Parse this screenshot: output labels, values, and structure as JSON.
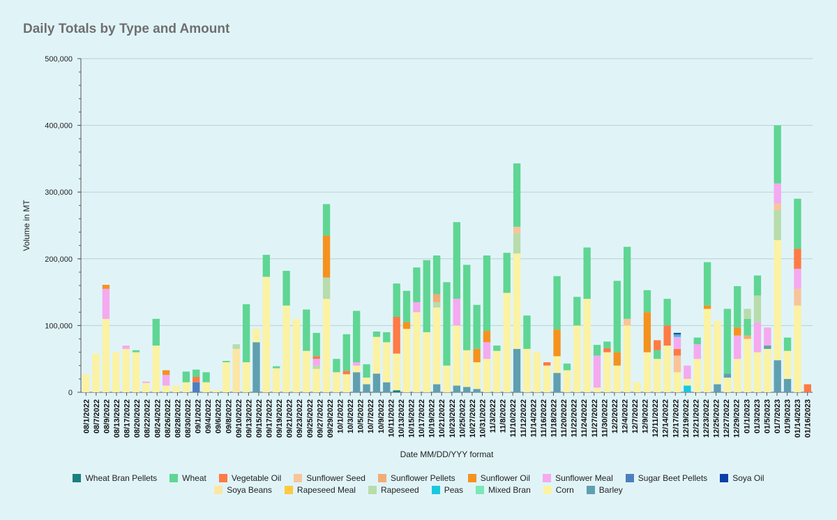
{
  "chart_data": {
    "type": "stacked-bar",
    "title": "Daily Totals by Type and Amount",
    "xlabel": "Date MM/DD/YYY format",
    "ylabel": "Volume in MT",
    "ylim": [
      0,
      500000
    ],
    "yticks": [
      "0",
      "100,000",
      "200,000",
      "300,000",
      "400,000",
      "500,000"
    ],
    "series": [
      {
        "name": "Wheat Bran Pellets",
        "color": "#1a7f7f"
      },
      {
        "name": "Wheat",
        "color": "#5fd693"
      },
      {
        "name": "Vegetable Oil",
        "color": "#ff7a45"
      },
      {
        "name": "Sunflower Seed",
        "color": "#f9c49a"
      },
      {
        "name": "Sunflower Pellets",
        "color": "#f2ad74"
      },
      {
        "name": "Sunflower Oil",
        "color": "#f5921f"
      },
      {
        "name": "Sunflower Meal",
        "color": "#f5a9ef"
      },
      {
        "name": "Sugar Beet Pellets",
        "color": "#4d7fbf"
      },
      {
        "name": "Soya Oil",
        "color": "#0c3fa8"
      },
      {
        "name": "Soya Beans",
        "color": "#fce6a4"
      },
      {
        "name": "Rapeseed Meal",
        "color": "#ffc940"
      },
      {
        "name": "Rapeseed",
        "color": "#b8dcab"
      },
      {
        "name": "Peas",
        "color": "#19c8df"
      },
      {
        "name": "Mixed Bran",
        "color": "#7ae8b8"
      },
      {
        "name": "Corn",
        "color": "#fbf2a3"
      },
      {
        "name": "Barley",
        "color": "#5f9fb0"
      }
    ],
    "x_tick_labels": [
      "08/1/2022",
      "08/7/2022",
      "08/9/2022",
      "08/13/2022",
      "08/17/2022",
      "08/20/2022",
      "08/22/2022",
      "08/24/2022",
      "08/26/2022",
      "08/28/2022",
      "08/30/2022",
      "09/1/2022",
      "09/4/2022",
      "09/6/2022",
      "09/8/2022",
      "09/10/2022",
      "09/13/2022",
      "09/15/2022",
      "09/17/2022",
      "09/19/2022",
      "09/21/2022",
      "09/23/2022",
      "09/25/2022",
      "09/27/2022",
      "09/29/2022",
      "10/1/2022",
      "10/3/2022",
      "10/5/2022",
      "10/7/2022",
      "10/9/2022",
      "10/11/2022",
      "10/13/2022",
      "10/15/2022",
      "10/17/2022",
      "10/19/2022",
      "10/21/2022",
      "10/23/2022",
      "10/25/2022",
      "10/27/2022",
      "10/31/2022",
      "11/3/2022",
      "11/8/2022",
      "11/10/2022",
      "11/12/2022",
      "11/14/2022",
      "11/16/2022",
      "11/18/2022",
      "11/20/2022",
      "11/22/2022",
      "11/24/2022",
      "11/27/2022",
      "11/30/2022",
      "12/2/2022",
      "12/4/2022",
      "12/7/2022",
      "12/9/2022",
      "12/11/2022",
      "12/14/2022",
      "12/17/2022",
      "12/19/2022",
      "12/21/2022",
      "12/23/2022",
      "12/25/2022",
      "12/27/2022",
      "12/29/2022",
      "01/1/2023",
      "01/3/2023",
      "01/5/2023",
      "01/7/2023",
      "01/9/2023",
      "01/14/2023",
      "01/16/2023"
    ],
    "bars": [
      [
        [
          "Corn",
          27000
        ]
      ],
      [
        [
          "Corn",
          58000
        ]
      ],
      [
        [
          "Corn",
          110000
        ],
        [
          "Sunflower Meal",
          45000
        ],
        [
          "Sunflower Oil",
          6000
        ]
      ],
      [
        [
          "Corn",
          60000
        ]
      ],
      [
        [
          "Corn",
          65000
        ],
        [
          "Sunflower Meal",
          5000
        ]
      ],
      [
        [
          "Corn",
          60000
        ],
        [
          "Wheat",
          3000
        ]
      ],
      [
        [
          "Corn",
          14000
        ],
        [
          "Sunflower Meal",
          2000
        ]
      ],
      [
        [
          "Corn",
          70000
        ],
        [
          "Wheat",
          40000
        ]
      ],
      [
        [
          "Corn",
          10000
        ],
        [
          "Sunflower Meal",
          16000
        ],
        [
          "Sunflower Oil",
          7000
        ]
      ],
      [
        [
          "Corn",
          10000
        ]
      ],
      [
        [
          "Corn",
          15000
        ],
        [
          "Wheat",
          16000
        ]
      ],
      [
        [
          "Sugar Beet Pellets",
          15000
        ],
        [
          "Vegetable Oil",
          8000
        ],
        [
          "Wheat",
          11000
        ]
      ],
      [
        [
          "Corn",
          15000
        ],
        [
          "Wheat",
          15000
        ]
      ],
      [
        [
          "Corn",
          3000
        ]
      ],
      [
        [
          "Corn",
          45000
        ],
        [
          "Wheat",
          2000
        ]
      ],
      [
        [
          "Soya Beans",
          65000
        ],
        [
          "Rapeseed",
          7000
        ]
      ],
      [
        [
          "Corn",
          45000
        ],
        [
          "Wheat",
          87000
        ]
      ],
      [
        [
          "Barley",
          75000
        ],
        [
          "Corn",
          20000
        ]
      ],
      [
        [
          "Corn",
          173000
        ],
        [
          "Wheat",
          33000
        ]
      ],
      [
        [
          "Corn",
          36000
        ],
        [
          "Wheat",
          3000
        ]
      ],
      [
        [
          "Corn",
          130000
        ],
        [
          "Wheat",
          52000
        ]
      ],
      [
        [
          "Corn",
          110000
        ]
      ],
      [
        [
          "Corn",
          62000
        ],
        [
          "Wheat",
          62000
        ]
      ],
      [
        [
          "Corn",
          35000
        ],
        [
          "Rapeseed",
          5000
        ],
        [
          "Sunflower Meal",
          10000
        ],
        [
          "Vegetable Oil",
          4000
        ],
        [
          "Wheat",
          35000
        ]
      ],
      [
        [
          "Corn",
          140000
        ],
        [
          "Rapeseed",
          32000
        ],
        [
          "Sunflower Oil",
          63000
        ],
        [
          "Wheat",
          47000
        ]
      ],
      [
        [
          "Corn",
          30000
        ],
        [
          "Wheat",
          20000
        ]
      ],
      [
        [
          "Corn",
          27000
        ],
        [
          "Vegetable Oil",
          5000
        ],
        [
          "Wheat",
          55000
        ]
      ],
      [
        [
          "Barley",
          30000
        ],
        [
          "Corn",
          10000
        ],
        [
          "Sunflower Meal",
          5000
        ],
        [
          "Wheat",
          77000
        ]
      ],
      [
        [
          "Barley",
          12000
        ],
        [
          "Corn",
          10000
        ],
        [
          "Wheat",
          20000
        ]
      ],
      [
        [
          "Barley",
          28000
        ],
        [
          "Corn",
          55000
        ],
        [
          "Wheat",
          8000
        ]
      ],
      [
        [
          "Barley",
          15000
        ],
        [
          "Corn",
          60000
        ],
        [
          "Wheat",
          15000
        ]
      ],
      [
        [
          "Wheat Bran Pellets",
          3000
        ],
        [
          "Corn",
          55000
        ],
        [
          "Vegetable Oil",
          55000
        ],
        [
          "Wheat",
          50000
        ]
      ],
      [
        [
          "Corn",
          95000
        ],
        [
          "Sunflower Oil",
          10000
        ],
        [
          "Wheat",
          47000
        ]
      ],
      [
        [
          "Corn",
          120000
        ],
        [
          "Sunflower Meal",
          15000
        ],
        [
          "Wheat",
          52000
        ]
      ],
      [
        [
          "Corn",
          90000
        ],
        [
          "Wheat",
          108000
        ]
      ],
      [
        [
          "Barley",
          12000
        ],
        [
          "Corn",
          115000
        ],
        [
          "Rapeseed",
          8000
        ],
        [
          "Sunflower Pellets",
          12000
        ],
        [
          "Wheat",
          58000
        ]
      ],
      [
        [
          "Corn",
          40000
        ],
        [
          "Wheat",
          125000
        ]
      ],
      [
        [
          "Barley",
          10000
        ],
        [
          "Corn",
          90000
        ],
        [
          "Sunflower Meal",
          40000
        ],
        [
          "Wheat",
          115000
        ]
      ],
      [
        [
          "Barley",
          8000
        ],
        [
          "Corn",
          55000
        ],
        [
          "Wheat",
          128000
        ]
      ],
      [
        [
          "Barley",
          5000
        ],
        [
          "Corn",
          40000
        ],
        [
          "Sunflower Oil",
          20000
        ],
        [
          "Wheat",
          66000
        ]
      ],
      [
        [
          "Corn",
          50000
        ],
        [
          "Sunflower Meal",
          25000
        ],
        [
          "Sunflower Oil",
          17000
        ],
        [
          "Wheat",
          113000
        ]
      ],
      [
        [
          "Corn",
          62000
        ],
        [
          "Wheat",
          8000
        ]
      ],
      [
        [
          "Corn",
          149000
        ],
        [
          "Wheat",
          60000
        ]
      ],
      [
        [
          "Barley",
          65000
        ],
        [
          "Corn",
          143000
        ],
        [
          "Rapeseed",
          30000
        ],
        [
          "Sunflower Seed",
          10000
        ],
        [
          "Wheat",
          95000
        ]
      ],
      [
        [
          "Corn",
          65000
        ],
        [
          "Wheat",
          50000
        ]
      ],
      [
        [
          "Corn",
          60000
        ]
      ],
      [
        [
          "Corn",
          40000
        ],
        [
          "Vegetable Oil",
          5000
        ]
      ],
      [
        [
          "Barley",
          29000
        ],
        [
          "Corn",
          25000
        ],
        [
          "Sunflower Oil",
          40000
        ],
        [
          "Wheat",
          80000
        ]
      ],
      [
        [
          "Corn",
          33000
        ],
        [
          "Wheat",
          10000
        ]
      ],
      [
        [
          "Corn",
          100000
        ],
        [
          "Wheat",
          43000
        ]
      ],
      [
        [
          "Corn",
          140000
        ],
        [
          "Wheat",
          77000
        ]
      ],
      [
        [
          "Corn",
          7000
        ],
        [
          "Sunflower Meal",
          48000
        ],
        [
          "Wheat",
          16000
        ]
      ],
      [
        [
          "Corn",
          60000
        ],
        [
          "Vegetable Oil",
          6000
        ],
        [
          "Wheat",
          10000
        ]
      ],
      [
        [
          "Corn",
          40000
        ],
        [
          "Sunflower Oil",
          20000
        ],
        [
          "Wheat",
          107000
        ]
      ],
      [
        [
          "Corn",
          100000
        ],
        [
          "Sunflower Seed",
          10000
        ],
        [
          "Wheat",
          108000
        ]
      ],
      [
        [
          "Corn",
          15000
        ]
      ],
      [
        [
          "Corn",
          60000
        ],
        [
          "Sunflower Oil",
          60000
        ],
        [
          "Wheat",
          33000
        ]
      ],
      [
        [
          "Corn",
          50000
        ],
        [
          "Wheat",
          13000
        ],
        [
          "Vegetable Oil",
          15000
        ]
      ],
      [
        [
          "Corn",
          70000
        ],
        [
          "Vegetable Oil",
          30000
        ],
        [
          "Wheat",
          40000
        ]
      ],
      [
        [
          "Corn",
          30000
        ],
        [
          "Sunflower Seed",
          25000
        ],
        [
          "Vegetable Oil",
          10000
        ],
        [
          "Sunflower Meal",
          18000
        ],
        [
          "Peas",
          2000
        ],
        [
          "Barley",
          2000
        ],
        [
          "Soya Oil",
          2000
        ]
      ],
      [
        [
          "Peas",
          10000
        ],
        [
          "Corn",
          10000
        ],
        [
          "Sunflower Meal",
          20000
        ]
      ],
      [
        [
          "Corn",
          50000
        ],
        [
          "Sunflower Meal",
          22000
        ],
        [
          "Wheat",
          10000
        ]
      ],
      [
        [
          "Corn",
          125000
        ],
        [
          "Sunflower Oil",
          5000
        ],
        [
          "Wheat",
          65000
        ]
      ],
      [
        [
          "Barley",
          12000
        ],
        [
          "Corn",
          95000
        ]
      ],
      [
        [
          "Corn",
          22000
        ],
        [
          "Barley",
          6000
        ],
        [
          "Wheat",
          97000
        ]
      ],
      [
        [
          "Corn",
          50000
        ],
        [
          "Sunflower Meal",
          35000
        ],
        [
          "Sunflower Oil",
          12000
        ],
        [
          "Wheat",
          62000
        ]
      ],
      [
        [
          "Corn",
          80000
        ],
        [
          "Sunflower Pellets",
          5000
        ],
        [
          "Wheat",
          25000
        ],
        [
          "Rapeseed",
          15000
        ]
      ],
      [
        [
          "Corn",
          60000
        ],
        [
          "Sunflower Meal",
          45000
        ],
        [
          "Rapeseed",
          40000
        ],
        [
          "Wheat",
          30000
        ]
      ],
      [
        [
          "Corn",
          65000
        ],
        [
          "Barley",
          5000
        ],
        [
          "Sunflower Meal",
          27000
        ]
      ],
      [
        [
          "Barley",
          48000
        ],
        [
          "Corn",
          180000
        ],
        [
          "Rapeseed",
          45000
        ],
        [
          "Sunflower Seed",
          10000
        ],
        [
          "Sunflower Meal",
          30000
        ],
        [
          "Wheat",
          87000
        ]
      ],
      [
        [
          "Barley",
          20000
        ],
        [
          "Corn",
          42000
        ],
        [
          "Wheat",
          20000
        ]
      ],
      [
        [
          "Corn",
          130000
        ],
        [
          "Sunflower Seed",
          25000
        ],
        [
          "Sunflower Meal",
          30000
        ],
        [
          "Vegetable Oil",
          30000
        ],
        [
          "Wheat",
          75000
        ]
      ],
      [
        [
          "Vegetable Oil",
          12000
        ]
      ]
    ]
  }
}
